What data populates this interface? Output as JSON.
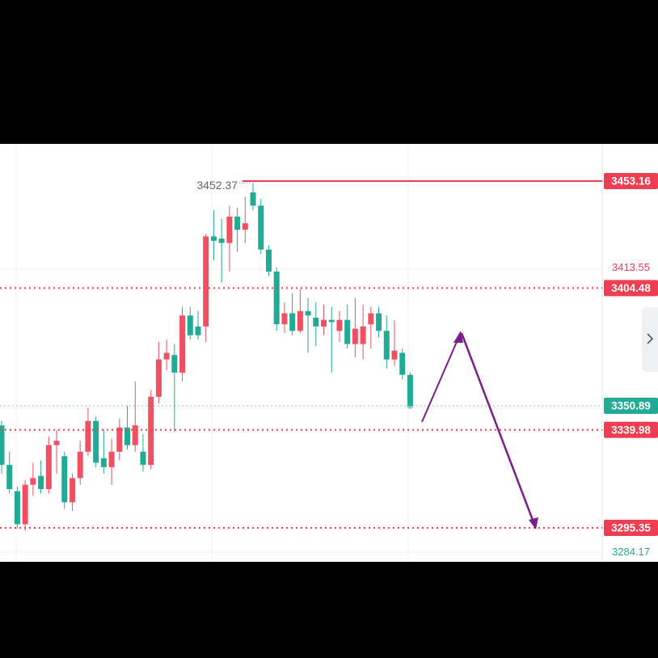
{
  "chart_data": {
    "type": "candlestick",
    "ylim": [
      3279.9,
      3470.1
    ],
    "open": [
      3342,
      3324,
      3312,
      3297,
      3315,
      3319,
      3313,
      3333,
      3328,
      3307,
      3318,
      3330,
      3344,
      3327,
      3323,
      3330,
      3341,
      3333,
      3330,
      3324,
      3355,
      3372,
      3374,
      3366,
      3392,
      3387,
      3387,
      3428,
      3427,
      3425,
      3437,
      3431,
      3448,
      3442,
      3422,
      3412,
      3388,
      3393,
      3385,
      3394,
      3391,
      3387,
      3390,
      3385,
      3390,
      3379,
      3379,
      3388,
      3393,
      3385,
      3372,
      3375,
      3365
    ],
    "high": [
      3344,
      3330,
      3314,
      3317,
      3325,
      3326,
      3337,
      3340,
      3330,
      3320,
      3335,
      3350,
      3346,
      3340,
      3336,
      3345,
      3351,
      3362,
      3338,
      3358,
      3380,
      3381,
      3379,
      3396,
      3396,
      3394,
      3429,
      3440,
      3436,
      3442,
      3441,
      3446,
      3452.37,
      3445,
      3424,
      3414,
      3398,
      3402,
      3404,
      3400,
      3398,
      3397,
      3396,
      3394,
      3397,
      3400,
      3397,
      3396,
      3396,
      3392,
      3390,
      3377,
      3366
    ],
    "low": [
      3320,
      3311,
      3295,
      3294,
      3310,
      3311,
      3311,
      3320,
      3304,
      3303,
      3315,
      3328,
      3323,
      3320,
      3315,
      3326,
      3331,
      3330,
      3321,
      3322,
      3352,
      3367,
      3339,
      3362,
      3381,
      3381,
      3380,
      3417,
      3407,
      3412,
      3421,
      3425,
      3440,
      3420,
      3410,
      3385,
      3384,
      3383,
      3384,
      3375,
      3378,
      3383,
      3366,
      3380,
      3377,
      3373,
      3372,
      3377,
      3382,
      3368,
      3369,
      3363,
      3350.5
    ],
    "close": [
      3324,
      3313,
      3297,
      3315,
      3318,
      3313,
      3333,
      3335,
      3307,
      3318,
      3330,
      3344,
      3325,
      3323,
      3330,
      3341,
      3333,
      3342,
      3324,
      3355,
      3372,
      3375,
      3366,
      3392,
      3383,
      3383,
      3428,
      3426,
      3425,
      3437,
      3431,
      3434,
      3442,
      3422,
      3412,
      3388,
      3393,
      3385,
      3394,
      3392,
      3387,
      3390,
      3389,
      3390,
      3379,
      3386,
      3387,
      3393,
      3385,
      3372,
      3376,
      3365,
      3350.89
    ],
    "up_color": "#ef5062",
    "down_color": "#22ab94",
    "high_label": 3452.37,
    "levels": [
      {
        "value": 3453.16,
        "color": "#ef3e52",
        "style": "solid"
      },
      {
        "value": 3404.48,
        "color": "#ef3e52",
        "style": "dotted"
      },
      {
        "value": 3350.89,
        "color": "#22ab94",
        "style": "dotted"
      },
      {
        "value": 3339.98,
        "color": "#ef3e52",
        "style": "dotted"
      },
      {
        "value": 3295.35,
        "color": "#ef3e52",
        "style": "dotted"
      }
    ],
    "axis_labels": [
      {
        "value": 3413.55,
        "color": "#ef3e52"
      },
      {
        "value": 3284.17,
        "color": "#22ab94"
      }
    ]
  }
}
